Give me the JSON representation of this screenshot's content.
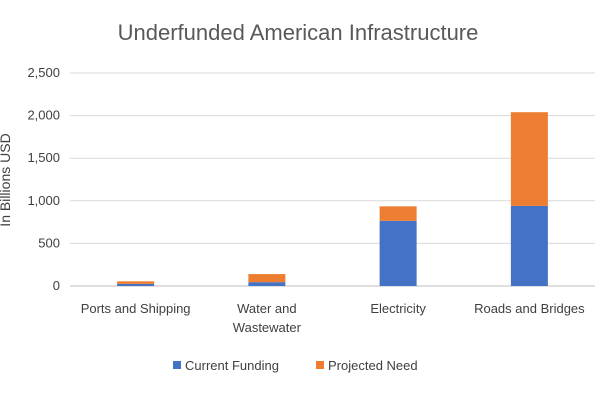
{
  "chart_data": {
    "type": "bar",
    "stacked": true,
    "title": "Underfunded American Infrastructure",
    "xlabel": "",
    "ylabel": "In Billions USD",
    "ylim": [
      0,
      2500
    ],
    "yticks": [
      0,
      500,
      1000,
      1500,
      2000,
      2500
    ],
    "ytick_labels": [
      "0",
      "500",
      "1,000",
      "1,500",
      "2,000",
      "2,500"
    ],
    "grid": true,
    "legend_position": "bottom",
    "categories": [
      [
        "Ports and Shipping"
      ],
      [
        "Water and",
        "Wastewater"
      ],
      [
        "Electricity"
      ],
      [
        "Roads and Bridges"
      ]
    ],
    "series": [
      {
        "name": "Current Funding",
        "color": "#4472C4",
        "values": [
          25,
          45,
          765,
          940
        ]
      },
      {
        "name": "Projected Need",
        "color": "#ED7D31",
        "values": [
          30,
          95,
          170,
          1100
        ]
      }
    ]
  }
}
